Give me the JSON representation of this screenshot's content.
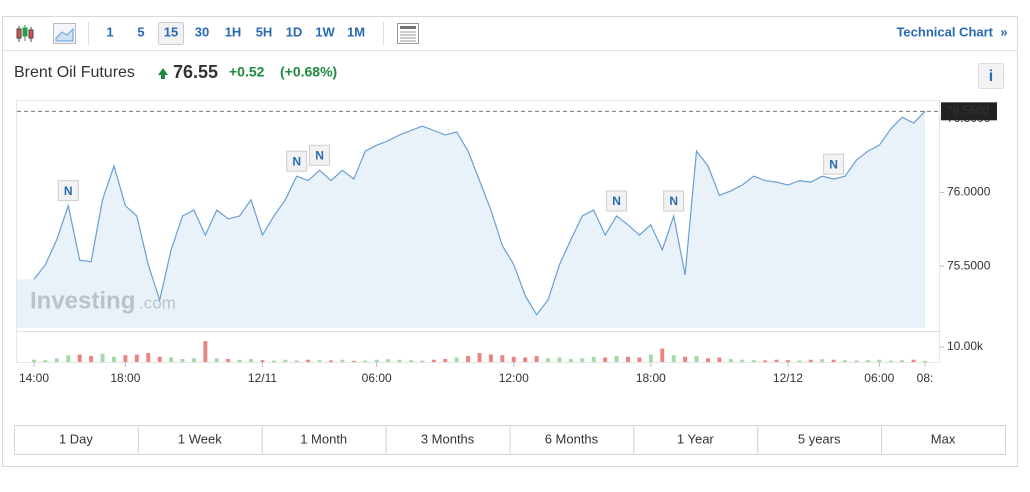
{
  "toolbar": {
    "intervals": [
      "1",
      "5",
      "15",
      "30",
      "1H",
      "5H",
      "1D",
      "1W",
      "1M"
    ],
    "active_interval": 2,
    "link": "Technical Chart",
    "link_arrow": "»"
  },
  "header": {
    "name": "Brent Oil Futures",
    "price": "76.55",
    "change": "+0.52",
    "change_percent": "(+0.68%)",
    "info": "i"
  },
  "chart_data": {
    "type": "line",
    "categories": [
      "14:00",
      null,
      null,
      null,
      null,
      null,
      null,
      null,
      "18:00",
      null,
      null,
      null,
      null,
      null,
      null,
      null,
      null,
      null,
      null,
      null,
      "12/11",
      null,
      null,
      null,
      null,
      null,
      null,
      null,
      null,
      null,
      "06:00",
      null,
      null,
      null,
      null,
      null,
      null,
      null,
      null,
      null,
      null,
      null,
      "12:00",
      null,
      null,
      null,
      null,
      null,
      null,
      null,
      null,
      null,
      null,
      null,
      "18:00",
      null,
      null,
      null,
      null,
      null,
      null,
      null,
      null,
      null,
      null,
      null,
      "12/12",
      null,
      null,
      null,
      null,
      null,
      null,
      null,
      "06:00",
      null,
      null,
      null,
      "08:"
    ],
    "series": [
      {
        "color": "#6a9fd4",
        "values": [
          75.41,
          75.51,
          75.68,
          75.91,
          75.54,
          75.53,
          75.95,
          76.18,
          75.91,
          75.84,
          75.51,
          75.27,
          75.61,
          75.84,
          75.88,
          75.71,
          75.88,
          75.82,
          75.84,
          75.95,
          75.71,
          75.84,
          75.95,
          76.11,
          76.08,
          76.15,
          76.08,
          76.15,
          76.09,
          76.28,
          76.32,
          76.35,
          76.39,
          76.42,
          76.45,
          76.42,
          76.39,
          76.41,
          76.28,
          76.08,
          75.88,
          75.64,
          75.51,
          75.3,
          75.17,
          75.27,
          75.51,
          75.68,
          75.84,
          75.88,
          75.71,
          75.84,
          75.78,
          75.71,
          75.78,
          75.61,
          75.84,
          75.44,
          76.28,
          76.18,
          75.98,
          76.01,
          76.05,
          76.11,
          76.08,
          76.07,
          76.05,
          76.08,
          76.07,
          76.11,
          76.09,
          76.11,
          76.22,
          76.28,
          76.32,
          76.43,
          76.51,
          76.47,
          76.55
        ]
      }
    ],
    "ylim": [
      75.08,
      76.62
    ],
    "yticks": [
      {
        "value": 75.5,
        "label": "75.5000"
      },
      {
        "value": 76,
        "label": "76.0000"
      },
      {
        "value": 76.5,
        "label": "76.5000"
      }
    ],
    "grid": false,
    "price_line": {
      "value": 76.55,
      "label": "76.5500"
    },
    "annotations": [
      {
        "text": "N",
        "x": 3
      },
      {
        "text": "N",
        "x": 23
      },
      {
        "text": "N",
        "x": 25
      },
      {
        "text": "N",
        "x": 51
      },
      {
        "text": "N",
        "x": 56
      },
      {
        "text": "N",
        "x": 70
      }
    ],
    "watermark": [
      "Investing",
      ".com"
    ],
    "volume": {
      "color_up": "#a8d8a8",
      "color_down": "#e98585",
      "values": [
        1500,
        1200,
        2500,
        4500,
        5000,
        4000,
        5500,
        3500,
        4500,
        5000,
        6000,
        3500,
        3000,
        2000,
        2500,
        14000,
        2500,
        2000,
        1500,
        2000,
        1200,
        1000,
        1500,
        1000,
        1500,
        1200,
        1000,
        1500,
        800,
        1000,
        1500,
        1800,
        1500,
        1200,
        1000,
        1500,
        2000,
        3000,
        4000,
        6000,
        5000,
        4500,
        3500,
        3000,
        4000,
        2500,
        3000,
        2000,
        2500,
        3500,
        3000,
        4000,
        3500,
        3000,
        5000,
        9000,
        4500,
        3500,
        4000,
        2500,
        3000,
        2000,
        1500,
        1200,
        1000,
        1500,
        1200,
        1000,
        1500,
        1800,
        1500,
        1200,
        1000,
        1200,
        1500,
        1000,
        1200,
        1500,
        800
      ],
      "ylim": [
        0,
        18000
      ],
      "yticks": [
        {
          "value": 10000,
          "label": "10.00k"
        }
      ]
    }
  },
  "ranges": [
    "1 Day",
    "1 Week",
    "1 Month",
    "3 Months",
    "6 Months",
    "1 Year",
    "5 years",
    "Max"
  ]
}
